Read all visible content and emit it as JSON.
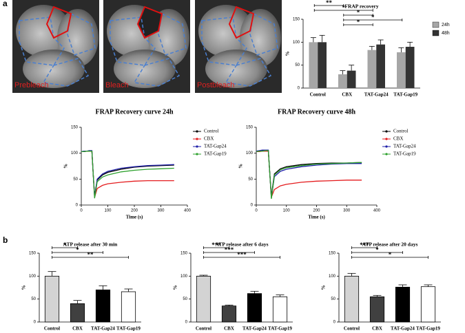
{
  "panel_labels": [
    "a",
    "b"
  ],
  "images": [
    "Prebleach",
    "Bleach",
    "Postbleach"
  ],
  "chart_data": [
    {
      "type": "bar",
      "title": "FRAP recovery",
      "y_label": "%",
      "categories": [
        "Control",
        "CBX",
        "TAT-Gap24",
        "TAT-Gap19"
      ],
      "series": [
        {
          "name": "24h",
          "color": "#a6a6a6",
          "values": [
            100,
            30,
            83,
            78
          ],
          "errors": [
            10,
            8,
            8,
            10
          ]
        },
        {
          "name": "48h",
          "color": "#333333",
          "values": [
            100,
            38,
            95,
            90
          ],
          "errors": [
            15,
            12,
            10,
            10
          ]
        }
      ],
      "ylim": [
        0,
        150
      ],
      "yticks": [
        0,
        50,
        100,
        150
      ],
      "legend": "right",
      "annotations": [
        "**",
        "*",
        "*",
        "*",
        "*"
      ]
    },
    {
      "type": "line",
      "title": "FRAP Recovery curve 24h",
      "x_label": "Time (s)",
      "y_label": "%",
      "x": [
        0,
        10,
        20,
        30,
        40,
        45,
        50,
        60,
        80,
        100,
        150,
        200,
        250,
        300,
        350
      ],
      "series": [
        {
          "name": "Control",
          "color": "#000000",
          "values": [
            103,
            103,
            104,
            104,
            104,
            60,
            18,
            48,
            58,
            63,
            69,
            73,
            75,
            76,
            77
          ]
        },
        {
          "name": "CBX",
          "color": "#e41a1c",
          "values": [
            103,
            103,
            104,
            104,
            104,
            60,
            15,
            32,
            38,
            41,
            44,
            46,
            47,
            47,
            47
          ]
        },
        {
          "name": "TAT-Gap24",
          "color": "#1f1fa8",
          "values": [
            103,
            104,
            104,
            105,
            105,
            60,
            15,
            50,
            60,
            65,
            71,
            74,
            76,
            77,
            78
          ]
        },
        {
          "name": "TAT-Gap19",
          "color": "#2ca02c",
          "values": [
            103,
            103,
            104,
            104,
            104,
            60,
            13,
            45,
            54,
            58,
            64,
            67,
            69,
            70,
            71
          ]
        }
      ],
      "xlim": [
        0,
        400
      ],
      "xticks": [
        0,
        100,
        200,
        300,
        400
      ],
      "ylim": [
        0,
        150
      ],
      "yticks": [
        0,
        50,
        100,
        150
      ],
      "legend": "right"
    },
    {
      "type": "line",
      "title": "FRAP Recovery curve 48h",
      "x_label": "Time (s)",
      "y_label": "%",
      "x": [
        0,
        10,
        20,
        30,
        40,
        45,
        50,
        60,
        80,
        100,
        150,
        200,
        250,
        300,
        350
      ],
      "series": [
        {
          "name": "Control",
          "color": "#000000",
          "values": [
            103,
            104,
            105,
            105,
            105,
            60,
            17,
            60,
            70,
            74,
            78,
            80,
            81,
            81,
            82
          ]
        },
        {
          "name": "CBX",
          "color": "#e41a1c",
          "values": [
            103,
            103,
            104,
            104,
            104,
            60,
            15,
            30,
            37,
            40,
            44,
            46,
            47,
            48,
            48
          ]
        },
        {
          "name": "TAT-Gap24",
          "color": "#1f1fa8",
          "values": [
            104,
            105,
            106,
            106,
            106,
            60,
            14,
            55,
            65,
            69,
            74,
            77,
            79,
            80,
            80
          ]
        },
        {
          "name": "TAT-Gap19",
          "color": "#2ca02c",
          "values": [
            103,
            104,
            104,
            105,
            105,
            60,
            12,
            58,
            68,
            72,
            76,
            79,
            80,
            81,
            82
          ]
        }
      ],
      "xlim": [
        0,
        400
      ],
      "xticks": [
        0,
        100,
        200,
        300,
        400
      ],
      "ylim": [
        0,
        150
      ],
      "yticks": [
        0,
        50,
        100,
        150
      ],
      "legend": "right"
    },
    {
      "type": "bar",
      "title": "ATP release after 30 min",
      "y_label": "%",
      "categories": [
        "Control",
        "CBX",
        "TAT-Gap24",
        "TAT-Gap19"
      ],
      "values": [
        100,
        40,
        70,
        66
      ],
      "errors": [
        10,
        7,
        9,
        6
      ],
      "colors": [
        "#d3d3d3",
        "#404040",
        "#000000",
        "#ffffff"
      ],
      "ylim": [
        0,
        150
      ],
      "yticks": [
        0,
        50,
        100,
        150
      ],
      "annotations": [
        "*",
        "*",
        "**"
      ]
    },
    {
      "type": "bar",
      "title": "ATP release after 6 days",
      "y_label": "%",
      "categories": [
        "Control",
        "CBX",
        "TAT-Gap24",
        "TAT-Gap19"
      ],
      "values": [
        100,
        35,
        62,
        55
      ],
      "errors": [
        2,
        2,
        5,
        4
      ],
      "colors": [
        "#d3d3d3",
        "#404040",
        "#000000",
        "#ffffff"
      ],
      "ylim": [
        0,
        150
      ],
      "yticks": [
        0,
        50,
        100,
        150
      ],
      "annotations": [
        "***",
        "***",
        "***"
      ]
    },
    {
      "type": "bar",
      "title": "ATP release after 20 days",
      "y_label": "%",
      "categories": [
        "Control",
        "CBX",
        "TAT-Gap24",
        "TAT-Gap19"
      ],
      "values": [
        100,
        55,
        76,
        77
      ],
      "errors": [
        6,
        3,
        5,
        4
      ],
      "colors": [
        "#d3d3d3",
        "#404040",
        "#000000",
        "#ffffff"
      ],
      "ylim": [
        0,
        150
      ],
      "yticks": [
        0,
        50,
        100,
        150
      ],
      "annotations": [
        "***",
        "*",
        "*"
      ]
    }
  ]
}
